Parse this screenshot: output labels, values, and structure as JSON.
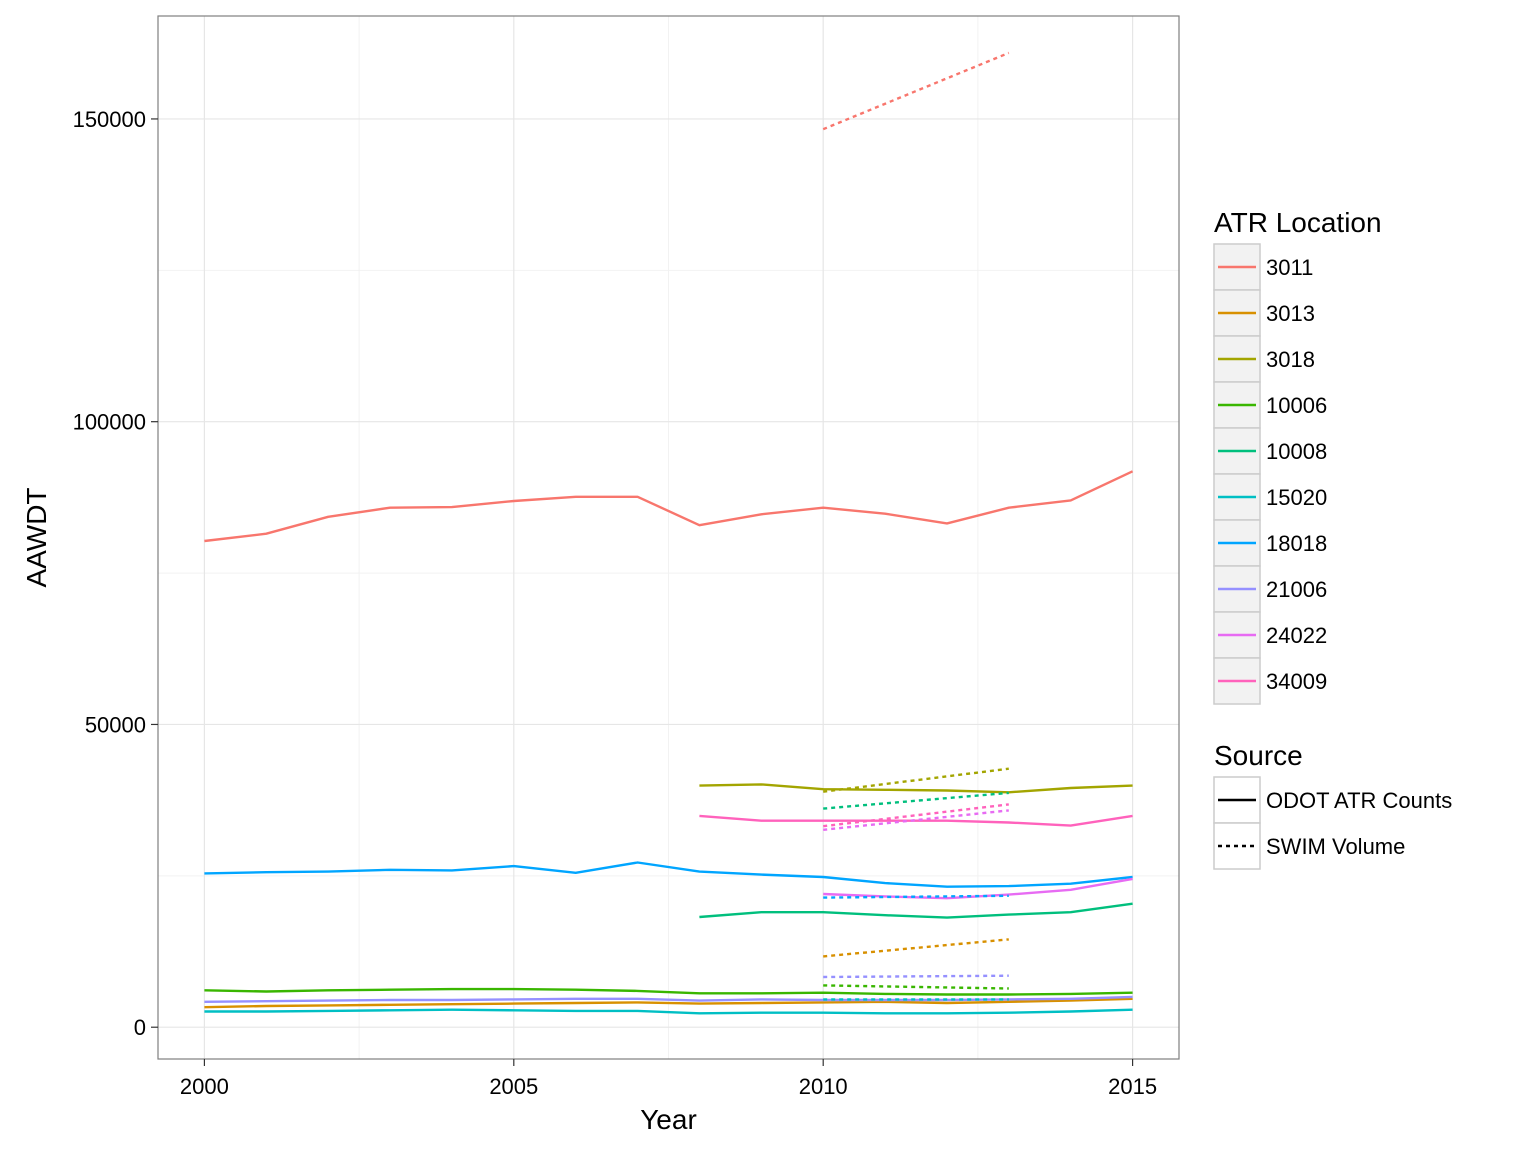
{
  "chart_data": {
    "type": "line",
    "title": "",
    "xlabel": "Year",
    "ylabel": "AAWDT",
    "xlim": [
      1999.25,
      2015.75
    ],
    "ylim": [
      -5250,
      167000
    ],
    "x_ticks": [
      2000,
      2005,
      2010,
      2015
    ],
    "y_ticks": [
      0,
      50000,
      100000,
      150000
    ],
    "y_minor_ticks": [
      25000,
      75000,
      125000
    ],
    "x_minor_ticks": [
      2002.5,
      2007.5,
      2012.5
    ],
    "grid": true,
    "legend_position": "right",
    "legend_color_title": "ATR Location",
    "legend_linetype_title": "Source",
    "locations": [
      {
        "name": "3011",
        "color": "#F8766D"
      },
      {
        "name": "3013",
        "color": "#D89000"
      },
      {
        "name": "3018",
        "color": "#A3A500"
      },
      {
        "name": "10006",
        "color": "#39B600"
      },
      {
        "name": "10008",
        "color": "#00BF7D"
      },
      {
        "name": "15020",
        "color": "#00BFC4"
      },
      {
        "name": "18018",
        "color": "#00A5FF"
      },
      {
        "name": "21006",
        "color": "#9590FF"
      },
      {
        "name": "24022",
        "color": "#E76BF3"
      },
      {
        "name": "34009",
        "color": "#FF62BC"
      }
    ],
    "sources": [
      {
        "name": "ODOT ATR Counts",
        "dash": "solid"
      },
      {
        "name": "SWIM Volume",
        "dash": "dotted"
      }
    ],
    "series": [
      {
        "location": "3011",
        "source": "ODOT ATR Counts",
        "x": [
          2000,
          2001,
          2002,
          2003,
          2004,
          2005,
          2006,
          2007,
          2008,
          2009,
          2010,
          2011,
          2012,
          2013,
          2014,
          2015
        ],
        "y": [
          80300,
          81500,
          84300,
          85800,
          85900,
          86900,
          87600,
          87600,
          82900,
          84700,
          85800,
          84800,
          83200,
          85800,
          87000,
          91800
        ]
      },
      {
        "location": "3013",
        "source": "ODOT ATR Counts",
        "x": [
          2000,
          2001,
          2002,
          2003,
          2004,
          2005,
          2006,
          2007,
          2008,
          2009,
          2010,
          2011,
          2012,
          2013,
          2014,
          2015
        ],
        "y": [
          3300,
          3500,
          3600,
          3700,
          3800,
          3900,
          4000,
          4100,
          3900,
          4000,
          4100,
          4200,
          4000,
          4200,
          4400,
          4700
        ]
      },
      {
        "location": "3018",
        "source": "ODOT ATR Counts",
        "x": [
          2008,
          2009,
          2010,
          2011,
          2012,
          2013,
          2014,
          2015
        ],
        "y": [
          39900,
          40100,
          39300,
          39200,
          39100,
          38800,
          39500,
          39900
        ]
      },
      {
        "location": "10006",
        "source": "ODOT ATR Counts",
        "x": [
          2000,
          2001,
          2002,
          2003,
          2004,
          2005,
          2006,
          2007,
          2008,
          2009,
          2010,
          2011,
          2012,
          2013,
          2014,
          2015
        ],
        "y": [
          6100,
          5900,
          6100,
          6200,
          6300,
          6300,
          6200,
          6000,
          5600,
          5600,
          5700,
          5500,
          5400,
          5400,
          5500,
          5700
        ]
      },
      {
        "location": "10008",
        "source": "ODOT ATR Counts",
        "x": [
          2008,
          2009,
          2010,
          2011,
          2012,
          2013,
          2014,
          2015
        ],
        "y": [
          18200,
          19000,
          19000,
          18500,
          18100,
          18600,
          19000,
          20400
        ]
      },
      {
        "location": "15020",
        "source": "ODOT ATR Counts",
        "x": [
          2000,
          2001,
          2002,
          2003,
          2004,
          2005,
          2006,
          2007,
          2008,
          2009,
          2010,
          2011,
          2012,
          2013,
          2014,
          2015
        ],
        "y": [
          2600,
          2600,
          2700,
          2800,
          2900,
          2800,
          2700,
          2700,
          2300,
          2400,
          2400,
          2300,
          2300,
          2400,
          2600,
          2900
        ]
      },
      {
        "location": "18018",
        "source": "ODOT ATR Counts",
        "x": [
          2000,
          2001,
          2002,
          2003,
          2004,
          2005,
          2006,
          2007,
          2008,
          2009,
          2010,
          2011,
          2012,
          2013,
          2014,
          2015
        ],
        "y": [
          25400,
          25600,
          25700,
          26000,
          25900,
          26600,
          25500,
          27200,
          25700,
          25200,
          24800,
          23800,
          23200,
          23300,
          23700,
          24800
        ]
      },
      {
        "location": "21006",
        "source": "ODOT ATR Counts",
        "x": [
          2000,
          2001,
          2002,
          2003,
          2004,
          2005,
          2006,
          2007,
          2008,
          2009,
          2010,
          2011,
          2012,
          2013,
          2014,
          2015
        ],
        "y": [
          4200,
          4300,
          4400,
          4500,
          4500,
          4600,
          4700,
          4700,
          4400,
          4600,
          4500,
          4500,
          4500,
          4600,
          4700,
          5000
        ]
      },
      {
        "location": "24022",
        "source": "ODOT ATR Counts",
        "x": [
          2010,
          2011,
          2012,
          2013,
          2014,
          2015
        ],
        "y": [
          22000,
          21600,
          21300,
          21900,
          22700,
          24500
        ]
      },
      {
        "location": "34009",
        "source": "ODOT ATR Counts",
        "x": [
          2008,
          2009,
          2010,
          2011,
          2012,
          2013,
          2014,
          2015
        ],
        "y": [
          34900,
          34100,
          34100,
          34100,
          34100,
          33800,
          33300,
          34900
        ]
      },
      {
        "location": "3011",
        "source": "SWIM Volume",
        "x": [
          2010,
          2013
        ],
        "y": [
          148300,
          160900
        ]
      },
      {
        "location": "3013",
        "source": "SWIM Volume",
        "x": [
          2010,
          2013
        ],
        "y": [
          11700,
          14500
        ]
      },
      {
        "location": "3018",
        "source": "SWIM Volume",
        "x": [
          2010,
          2013
        ],
        "y": [
          38900,
          42700
        ]
      },
      {
        "location": "10006",
        "source": "SWIM Volume",
        "x": [
          2010,
          2013
        ],
        "y": [
          6900,
          6400
        ]
      },
      {
        "location": "10008",
        "source": "SWIM Volume",
        "x": [
          2010,
          2013
        ],
        "y": [
          36100,
          38700
        ]
      },
      {
        "location": "15020",
        "source": "SWIM Volume",
        "x": [
          2010,
          2013
        ],
        "y": [
          4600,
          4600
        ]
      },
      {
        "location": "18018",
        "source": "SWIM Volume",
        "x": [
          2010,
          2013
        ],
        "y": [
          21400,
          21700
        ]
      },
      {
        "location": "21006",
        "source": "SWIM Volume",
        "x": [
          2010,
          2013
        ],
        "y": [
          8300,
          8500
        ]
      },
      {
        "location": "24022",
        "source": "SWIM Volume",
        "x": [
          2010,
          2013
        ],
        "y": [
          32600,
          35800
        ]
      },
      {
        "location": "34009",
        "source": "SWIM Volume",
        "x": [
          2010,
          2013
        ],
        "y": [
          33200,
          36800
        ]
      }
    ]
  }
}
